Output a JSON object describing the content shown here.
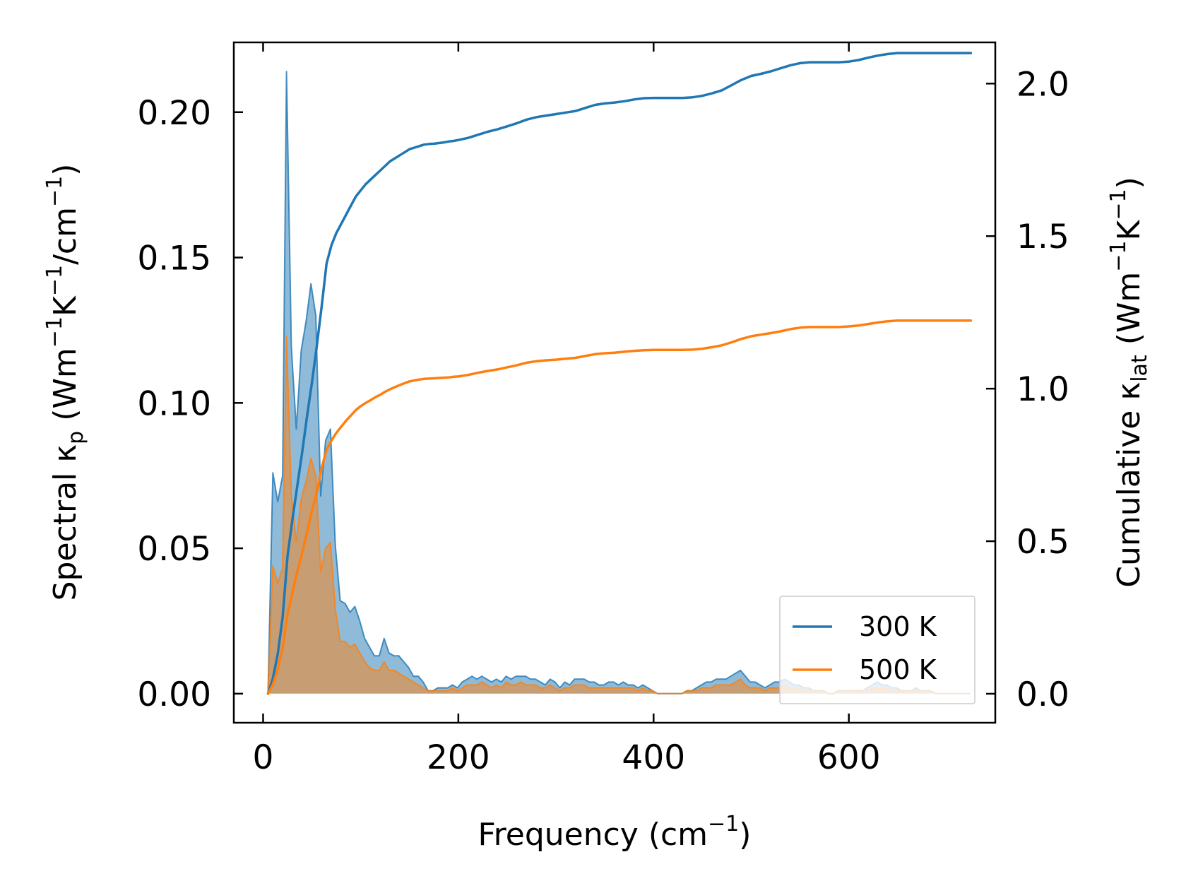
{
  "chart_data": {
    "type": "line",
    "xlabel": "Frequency (cm⁻¹)",
    "ylabel_left": "Spectral κp (Wm⁻¹K⁻¹/cm⁻¹)",
    "ylabel_right": "Cumulative κlat (Wm⁻¹K⁻¹)",
    "xlim": [
      -30,
      750
    ],
    "ylim_left": [
      -0.01,
      0.224
    ],
    "ylim_right": [
      -0.095,
      2.135
    ],
    "xticks": [
      0,
      200,
      400,
      600
    ],
    "yticks_left": [
      0.0,
      0.05,
      0.1,
      0.15,
      0.2
    ],
    "yticks_right": [
      0.0,
      0.5,
      1.0,
      1.5,
      2.0
    ],
    "xtick_labels": [
      "0",
      "200",
      "400",
      "600"
    ],
    "ytick_labels_left": [
      "0.00",
      "0.05",
      "0.10",
      "0.15",
      "0.20"
    ],
    "ytick_labels_right": [
      "0.0",
      "0.5",
      "1.0",
      "1.5",
      "2.0"
    ],
    "legend_position": "bottom-right",
    "series": [
      {
        "name": "300 K",
        "color": "#1f77b4",
        "spectral": {
          "x": [
            5,
            10,
            15,
            20,
            24,
            29,
            34,
            39,
            44,
            49,
            54,
            59,
            64,
            69,
            74,
            79,
            84,
            89,
            94,
            99,
            104,
            109,
            114,
            119,
            124,
            129,
            134,
            139,
            144,
            149,
            154,
            159,
            164,
            169,
            174,
            179,
            184,
            189,
            194,
            199,
            204,
            209,
            214,
            219,
            224,
            229,
            234,
            239,
            244,
            249,
            254,
            259,
            264,
            269,
            274,
            279,
            284,
            289,
            294,
            299,
            304,
            309,
            314,
            319,
            324,
            329,
            334,
            339,
            344,
            349,
            354,
            359,
            364,
            369,
            374,
            379,
            384,
            389,
            394,
            399,
            404,
            409,
            414,
            419,
            424,
            429,
            434,
            439,
            444,
            449,
            454,
            459,
            464,
            469,
            474,
            479,
            484,
            489,
            494,
            499,
            504,
            509,
            514,
            519,
            524,
            529,
            534,
            539,
            544,
            549,
            554,
            559,
            564,
            569,
            574,
            579,
            584,
            589,
            594,
            599,
            604,
            609,
            614,
            619,
            624,
            629,
            634,
            639,
            644,
            649,
            654,
            659,
            664,
            669,
            674,
            679,
            684,
            689,
            694,
            699,
            704,
            709,
            714,
            719,
            724
          ],
          "y": [
            0.0,
            0.076,
            0.066,
            0.075,
            0.214,
            0.119,
            0.091,
            0.118,
            0.128,
            0.141,
            0.13,
            0.068,
            0.087,
            0.091,
            0.051,
            0.032,
            0.031,
            0.028,
            0.03,
            0.025,
            0.019,
            0.016,
            0.013,
            0.013,
            0.019,
            0.014,
            0.013,
            0.013,
            0.011,
            0.009,
            0.006,
            0.006,
            0.004,
            0.001,
            0.001,
            0.002,
            0.002,
            0.002,
            0.003,
            0.002,
            0.004,
            0.005,
            0.006,
            0.005,
            0.006,
            0.005,
            0.004,
            0.005,
            0.004,
            0.006,
            0.005,
            0.006,
            0.006,
            0.006,
            0.005,
            0.005,
            0.004,
            0.003,
            0.005,
            0.004,
            0.002,
            0.004,
            0.003,
            0.005,
            0.005,
            0.005,
            0.004,
            0.004,
            0.003,
            0.003,
            0.004,
            0.004,
            0.003,
            0.004,
            0.003,
            0.003,
            0.002,
            0.003,
            0.002,
            0.001,
            0.0,
            0.0,
            0.0,
            0.0,
            0.0,
            0.0,
            0.001,
            0.001,
            0.002,
            0.003,
            0.004,
            0.004,
            0.005,
            0.005,
            0.005,
            0.006,
            0.007,
            0.008,
            0.006,
            0.004,
            0.004,
            0.003,
            0.002,
            0.003,
            0.004,
            0.004,
            0.005,
            0.004,
            0.003,
            0.003,
            0.002,
            0.002,
            0.001,
            0.001,
            0.001,
            0.0,
            0.0,
            0.001,
            0.001,
            0.001,
            0.001,
            0.001,
            0.001,
            0.002,
            0.003,
            0.004,
            0.003,
            0.003,
            0.002,
            0.002,
            0.001,
            0.001,
            0.001,
            0.002,
            0.001,
            0.001,
            0.001,
            0.0,
            0.0,
            0.0,
            0.0,
            0.0,
            0.0,
            0.0,
            0.0
          ]
        },
        "cumulative": {
          "x": [
            5,
            10,
            15,
            20,
            25,
            30,
            35,
            40,
            45,
            50,
            55,
            60,
            65,
            70,
            75,
            80,
            85,
            90,
            95,
            100,
            105,
            110,
            115,
            120,
            125,
            130,
            135,
            140,
            145,
            150,
            155,
            160,
            165,
            170,
            175,
            180,
            185,
            190,
            195,
            200,
            210,
            220,
            230,
            240,
            250,
            260,
            270,
            280,
            290,
            300,
            310,
            320,
            330,
            340,
            350,
            360,
            370,
            380,
            390,
            400,
            410,
            420,
            430,
            440,
            450,
            460,
            470,
            480,
            490,
            500,
            510,
            520,
            530,
            540,
            550,
            560,
            570,
            580,
            590,
            600,
            610,
            620,
            630,
            640,
            650,
            660,
            670,
            680,
            690,
            700,
            710,
            720,
            725
          ],
          "y": [
            0.0,
            0.05,
            0.13,
            0.25,
            0.45,
            0.57,
            0.68,
            0.79,
            0.91,
            1.02,
            1.14,
            1.27,
            1.41,
            1.47,
            1.51,
            1.54,
            1.57,
            1.6,
            1.63,
            1.65,
            1.67,
            1.685,
            1.7,
            1.715,
            1.73,
            1.745,
            1.755,
            1.765,
            1.775,
            1.785,
            1.79,
            1.795,
            1.8,
            1.802,
            1.803,
            1.805,
            1.807,
            1.81,
            1.812,
            1.815,
            1.822,
            1.832,
            1.842,
            1.85,
            1.86,
            1.87,
            1.882,
            1.89,
            1.895,
            1.9,
            1.905,
            1.91,
            1.92,
            1.93,
            1.935,
            1.938,
            1.942,
            1.948,
            1.952,
            1.953,
            1.953,
            1.953,
            1.953,
            1.955,
            1.96,
            1.968,
            1.978,
            1.995,
            2.012,
            2.025,
            2.032,
            2.04,
            2.05,
            2.06,
            2.067,
            2.07,
            2.07,
            2.07,
            2.07,
            2.072,
            2.077,
            2.085,
            2.092,
            2.097,
            2.1,
            2.1,
            2.1,
            2.1,
            2.1,
            2.1,
            2.1,
            2.1,
            2.1
          ]
        }
      },
      {
        "name": "500 K",
        "color": "#ff7f0e",
        "spectral": {
          "x": [
            5,
            10,
            15,
            20,
            24,
            29,
            34,
            39,
            44,
            49,
            54,
            59,
            64,
            69,
            74,
            79,
            84,
            89,
            94,
            99,
            104,
            109,
            114,
            119,
            124,
            129,
            134,
            139,
            144,
            149,
            154,
            159,
            164,
            169,
            174,
            179,
            184,
            189,
            194,
            199,
            204,
            209,
            214,
            219,
            224,
            229,
            234,
            239,
            244,
            249,
            254,
            259,
            264,
            269,
            274,
            279,
            284,
            289,
            294,
            299,
            304,
            309,
            314,
            319,
            324,
            329,
            334,
            339,
            344,
            349,
            354,
            359,
            364,
            369,
            374,
            379,
            384,
            389,
            394,
            399,
            404,
            409,
            414,
            419,
            424,
            429,
            434,
            439,
            444,
            449,
            454,
            459,
            464,
            469,
            474,
            479,
            484,
            489,
            494,
            499,
            504,
            509,
            514,
            519,
            524,
            529,
            534,
            539,
            544,
            549,
            554,
            559,
            564,
            569,
            574,
            579,
            584,
            589,
            594,
            599,
            604,
            609,
            614,
            619,
            624,
            629,
            634,
            639,
            644,
            649,
            654,
            659,
            664,
            669,
            674,
            679,
            684,
            689,
            694,
            699,
            704,
            709,
            714,
            719,
            724
          ],
          "y": [
            0.0,
            0.044,
            0.038,
            0.043,
            0.123,
            0.068,
            0.052,
            0.067,
            0.073,
            0.081,
            0.075,
            0.042,
            0.05,
            0.052,
            0.029,
            0.018,
            0.018,
            0.016,
            0.017,
            0.014,
            0.011,
            0.009,
            0.008,
            0.008,
            0.011,
            0.008,
            0.008,
            0.007,
            0.006,
            0.005,
            0.004,
            0.003,
            0.002,
            0.001,
            0.001,
            0.001,
            0.001,
            0.001,
            0.002,
            0.001,
            0.002,
            0.003,
            0.003,
            0.003,
            0.004,
            0.003,
            0.002,
            0.003,
            0.002,
            0.004,
            0.003,
            0.003,
            0.004,
            0.003,
            0.003,
            0.003,
            0.002,
            0.002,
            0.003,
            0.002,
            0.001,
            0.002,
            0.002,
            0.003,
            0.003,
            0.003,
            0.002,
            0.002,
            0.002,
            0.002,
            0.002,
            0.002,
            0.002,
            0.002,
            0.002,
            0.002,
            0.001,
            0.002,
            0.001,
            0.001,
            0.0,
            0.0,
            0.0,
            0.0,
            0.0,
            0.0,
            0.001,
            0.001,
            0.001,
            0.002,
            0.002,
            0.002,
            0.003,
            0.003,
            0.003,
            0.003,
            0.004,
            0.005,
            0.003,
            0.002,
            0.002,
            0.002,
            0.001,
            0.002,
            0.002,
            0.002,
            0.003,
            0.002,
            0.002,
            0.002,
            0.001,
            0.001,
            0.001,
            0.001,
            0.001,
            0.0,
            0.0,
            0.001,
            0.001,
            0.001,
            0.001,
            0.001,
            0.001,
            0.001,
            0.002,
            0.002,
            0.002,
            0.002,
            0.001,
            0.001,
            0.001,
            0.001,
            0.001,
            0.001,
            0.001,
            0.001,
            0.001,
            0.0,
            0.0,
            0.0,
            0.0,
            0.0,
            0.0,
            0.0,
            0.0
          ]
        },
        "cumulative": {
          "x": [
            5,
            10,
            15,
            20,
            25,
            30,
            35,
            40,
            45,
            50,
            55,
            60,
            65,
            70,
            75,
            80,
            85,
            90,
            95,
            100,
            105,
            110,
            115,
            120,
            125,
            130,
            135,
            140,
            145,
            150,
            155,
            160,
            165,
            170,
            175,
            180,
            185,
            190,
            195,
            200,
            210,
            220,
            230,
            240,
            250,
            260,
            270,
            280,
            290,
            300,
            310,
            320,
            330,
            340,
            350,
            360,
            370,
            380,
            390,
            400,
            410,
            420,
            430,
            440,
            450,
            460,
            470,
            480,
            490,
            500,
            510,
            520,
            530,
            540,
            550,
            560,
            570,
            580,
            590,
            600,
            610,
            620,
            630,
            640,
            650,
            660,
            670,
            680,
            690,
            700,
            710,
            720,
            725
          ],
          "y": [
            0.0,
            0.03,
            0.08,
            0.15,
            0.26,
            0.33,
            0.4,
            0.46,
            0.53,
            0.6,
            0.66,
            0.74,
            0.8,
            0.83,
            0.855,
            0.875,
            0.895,
            0.912,
            0.93,
            0.943,
            0.953,
            0.962,
            0.972,
            0.98,
            0.99,
            0.998,
            1.005,
            1.012,
            1.018,
            1.024,
            1.027,
            1.03,
            1.032,
            1.033,
            1.034,
            1.035,
            1.036,
            1.037,
            1.039,
            1.04,
            1.045,
            1.052,
            1.058,
            1.063,
            1.07,
            1.077,
            1.085,
            1.09,
            1.093,
            1.095,
            1.098,
            1.101,
            1.107,
            1.113,
            1.116,
            1.118,
            1.121,
            1.124,
            1.126,
            1.127,
            1.127,
            1.127,
            1.127,
            1.128,
            1.131,
            1.136,
            1.142,
            1.152,
            1.163,
            1.172,
            1.177,
            1.182,
            1.188,
            1.195,
            1.2,
            1.202,
            1.202,
            1.202,
            1.202,
            1.204,
            1.207,
            1.212,
            1.217,
            1.221,
            1.223,
            1.223,
            1.223,
            1.223,
            1.223,
            1.223,
            1.223,
            1.223,
            1.223
          ]
        }
      }
    ]
  }
}
